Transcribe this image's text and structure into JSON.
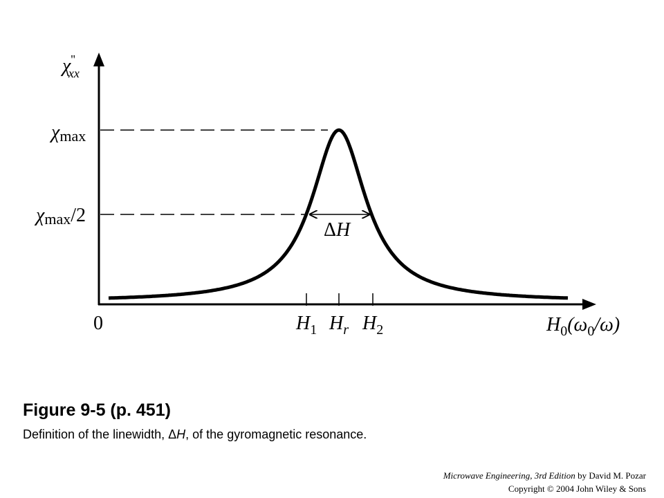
{
  "diagram": {
    "y_axis_label": {
      "symbol": "χ",
      "sup": "''",
      "sub": "xx"
    },
    "chi_max": {
      "symbol": "χ",
      "sub": "max"
    },
    "chi_half": {
      "symbol": "χ",
      "sub": "max",
      "rest": "/2"
    },
    "delta_h": {
      "delta": "Δ",
      "symbol": "H"
    },
    "origin": "0",
    "h1": {
      "symbol": "H",
      "sub": "1"
    },
    "hr": {
      "symbol": "H",
      "sub": "r"
    },
    "h2": {
      "symbol": "H",
      "sub": "2"
    },
    "x_axis_label": {
      "symbol": "H",
      "sub": "0",
      "rest": "(ω",
      "sub2": "0",
      "rest2": "/ω)"
    }
  },
  "caption": {
    "title": "Figure 9-5  (p. 451)",
    "text_before": "Definition of the linewidth, ",
    "delta": "Δ",
    "symbol": "H",
    "text_after": ", of the gyromagnetic resonance."
  },
  "footer": {
    "book": "Microwave Engineering, 3rd Edition",
    "author": " by David M. Pozar",
    "copyright": "Copyright © 2004 John Wiley & Sons"
  }
}
